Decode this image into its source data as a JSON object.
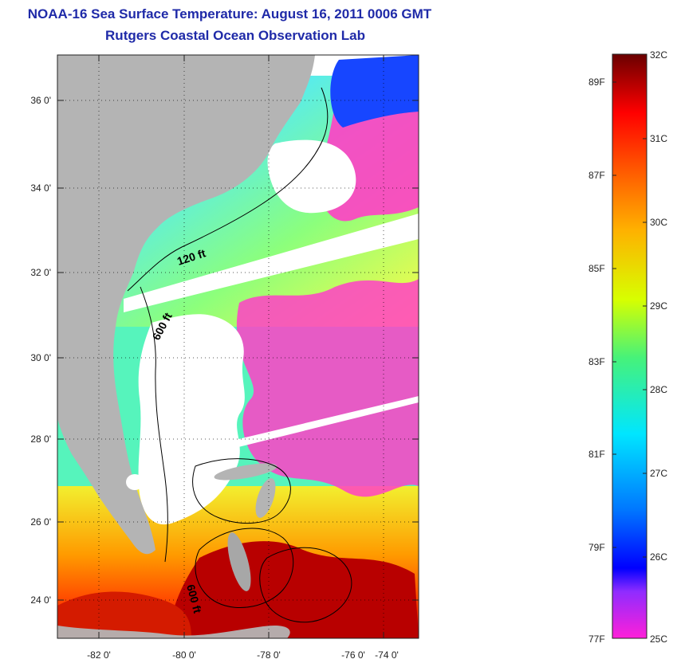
{
  "title": {
    "line1": "NOAA-16 Sea Surface Temperature:  August 16, 2011 0006 GMT",
    "line2": "Rutgers Coastal Ocean Observation Lab"
  },
  "map": {
    "lat_labels": [
      "36 0'",
      "34 0'",
      "32 0'",
      "30 0'",
      "28 0'",
      "26 0'",
      "24 0'"
    ],
    "lon_labels": [
      "-82 0'",
      "-80 0'",
      "-78 0'",
      "-76 0'",
      "-74 0'"
    ],
    "contour_labels": [
      "120 ft",
      "600 ft",
      "600 ft"
    ],
    "colors": {
      "land": "#b4b4b4",
      "cloud": "#ffffff",
      "cold": "#ff33d2",
      "cool": "#2aa8ff",
      "mid": "#2ef0e4",
      "warm": "#b6f23a",
      "hot": "#ff6a00",
      "hottest": "#a80000"
    }
  },
  "colorbar": {
    "celsius": [
      "32C",
      "31C",
      "30C",
      "29C",
      "28C",
      "27C",
      "26C",
      "25C"
    ],
    "fahrenheit": [
      "89F",
      "87F",
      "85F",
      "83F",
      "81F",
      "79F",
      "77F"
    ],
    "stops": [
      "#ff1fd8",
      "#7a22ff",
      "#0000ff",
      "#0077ff",
      "#00e6ff",
      "#46f27a",
      "#d7ff00",
      "#ffb000",
      "#ff5a00",
      "#ff0000",
      "#b00000",
      "#6a0000"
    ]
  }
}
